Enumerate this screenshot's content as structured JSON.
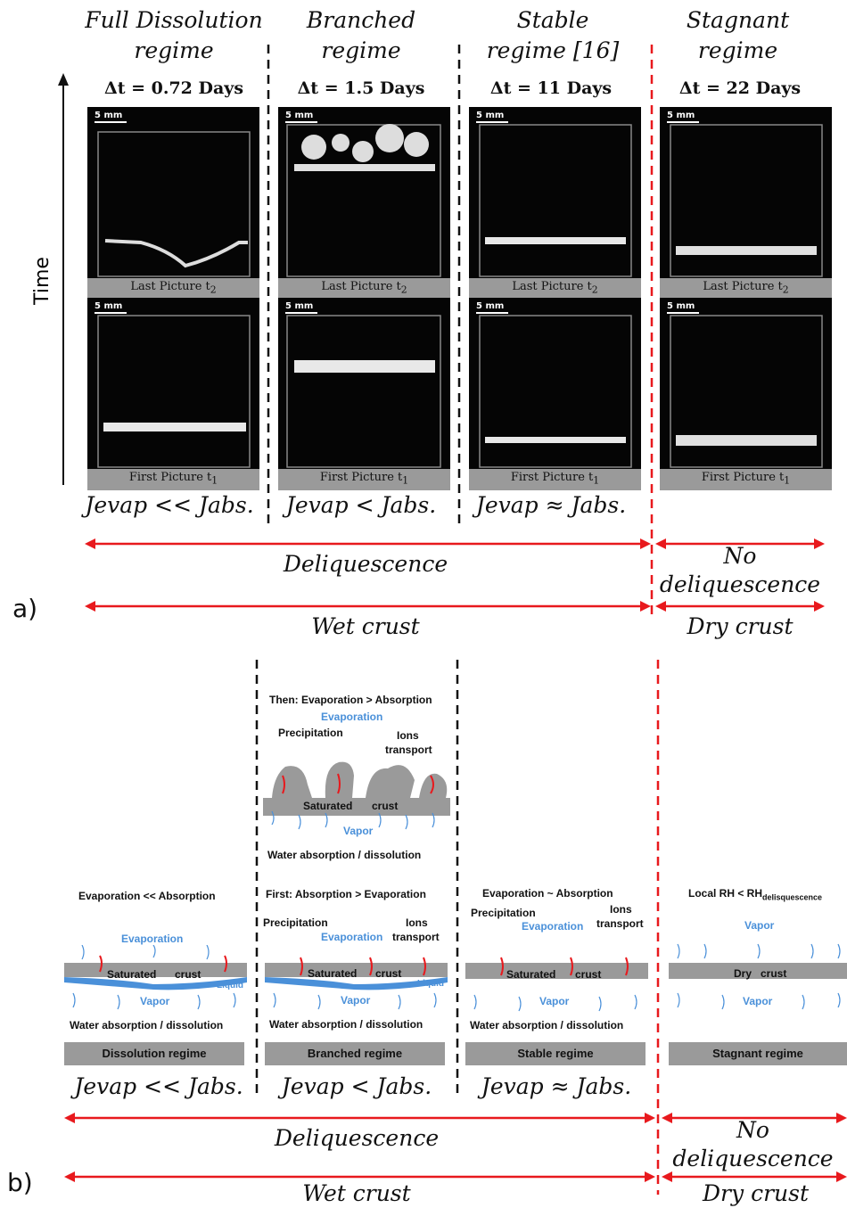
{
  "panel_a": {
    "letter": "a)",
    "time_label": "Time",
    "regimes": [
      {
        "title": [
          "Full Dissolution",
          "regime"
        ],
        "dt": "Δt = 0.72 Days",
        "last": "Last Picture t",
        "first": "First Picture t",
        "scale": "5 mm",
        "formula": "Jevap << Jabs."
      },
      {
        "title": [
          "Branched",
          "regime"
        ],
        "dt": "Δt = 1.5 Days",
        "last": "Last Picture t",
        "first": "First Picture t",
        "scale": "5 mm",
        "formula": "Jevap < Jabs."
      },
      {
        "title": [
          "Stable",
          "regime [16]"
        ],
        "dt": "Δt = 11 Days",
        "last": "Last Picture t",
        "first": "First Picture t",
        "scale": "5 mm",
        "formula": "Jevap ≈ Jabs."
      },
      {
        "title": [
          "Stagnant",
          "regime"
        ],
        "dt": "Δt = 22 Days",
        "last": "Last Picture t",
        "first": "First Picture t",
        "scale": "5 mm",
        "formula": ""
      }
    ],
    "sub2": "2",
    "sub1": "1",
    "deliquescence": "Deliquescence",
    "no_deliquescence": [
      "No",
      "deliquescence"
    ],
    "wet_crust": "Wet crust",
    "dry_crust": "Dry crust"
  },
  "panel_b": {
    "letter": "b)",
    "dissolution": {
      "title": "Evaporation << Absorption",
      "evaporation": "Evaporation",
      "saturated": "Saturated",
      "crust": "crust",
      "liquid": "Liquid",
      "vapor": "Vapor",
      "water": "Water absorption / dissolution",
      "regime": "Dissolution regime",
      "formula": "Jevap << Jabs."
    },
    "branched_then": {
      "title": "Then:  Evaporation > Absorption",
      "evaporation": "Evaporation",
      "precipitation": "Precipitation",
      "ions": "Ions",
      "transport": "transport",
      "saturated": "Saturated",
      "crust": "crust",
      "vapor": "Vapor",
      "water": "Water absorption / dissolution"
    },
    "branched_first": {
      "title": "First:  Absorption > Evaporation",
      "precipitation": "Precipitation",
      "evaporation": "Evaporation",
      "ions": "Ions",
      "transport": "transport",
      "saturated": "Saturated",
      "crust": "crust",
      "liquid": "Liquid",
      "vapor": "Vapor",
      "water": "Water absorption / dissolution",
      "regime": "Branched regime",
      "formula": "Jevap < Jabs."
    },
    "stable": {
      "title": "Evaporation ~ Absorption",
      "precipitation": "Precipitation",
      "evaporation": "Evaporation",
      "ions": "Ions",
      "transport": "transport",
      "saturated": "Saturated",
      "crust": "crust",
      "vapor": "Vapor",
      "water": "Water absorption / dissolution",
      "regime": "Stable regime",
      "formula": "Jevap ≈ Jabs."
    },
    "stagnant": {
      "title": "Local RH < RH",
      "title_sub": "delisquescence",
      "vapor_top": "Vapor",
      "dry": "Dry",
      "crust": "crust",
      "vapor_bottom": "Vapor",
      "regime": "Stagnant regime"
    },
    "deliquescence": "Deliquescence",
    "no_deliquescence": [
      "No",
      "deliquescence"
    ],
    "wet_crust": "Wet crust",
    "dry_crust": "Dry crust"
  },
  "colors": {
    "arrow_red": "#e8191d",
    "divider_black": "#111111",
    "divider_red": "#e8191d",
    "blue": "#4a90d9",
    "grey": "#9a9a9a"
  }
}
